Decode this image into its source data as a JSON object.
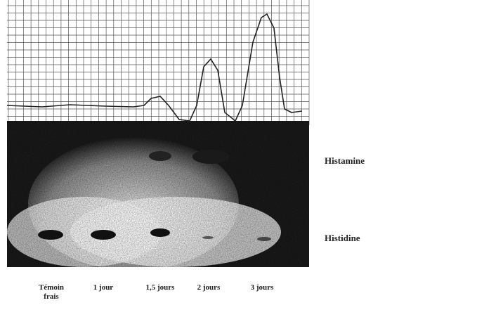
{
  "figure": {
    "bands": {
      "top": "Histamine",
      "bottom": "Histidine"
    },
    "lanes": [
      "Témoin frais",
      "1 jour",
      "1,5 jours",
      "2 jours",
      "3 jours"
    ]
  }
}
